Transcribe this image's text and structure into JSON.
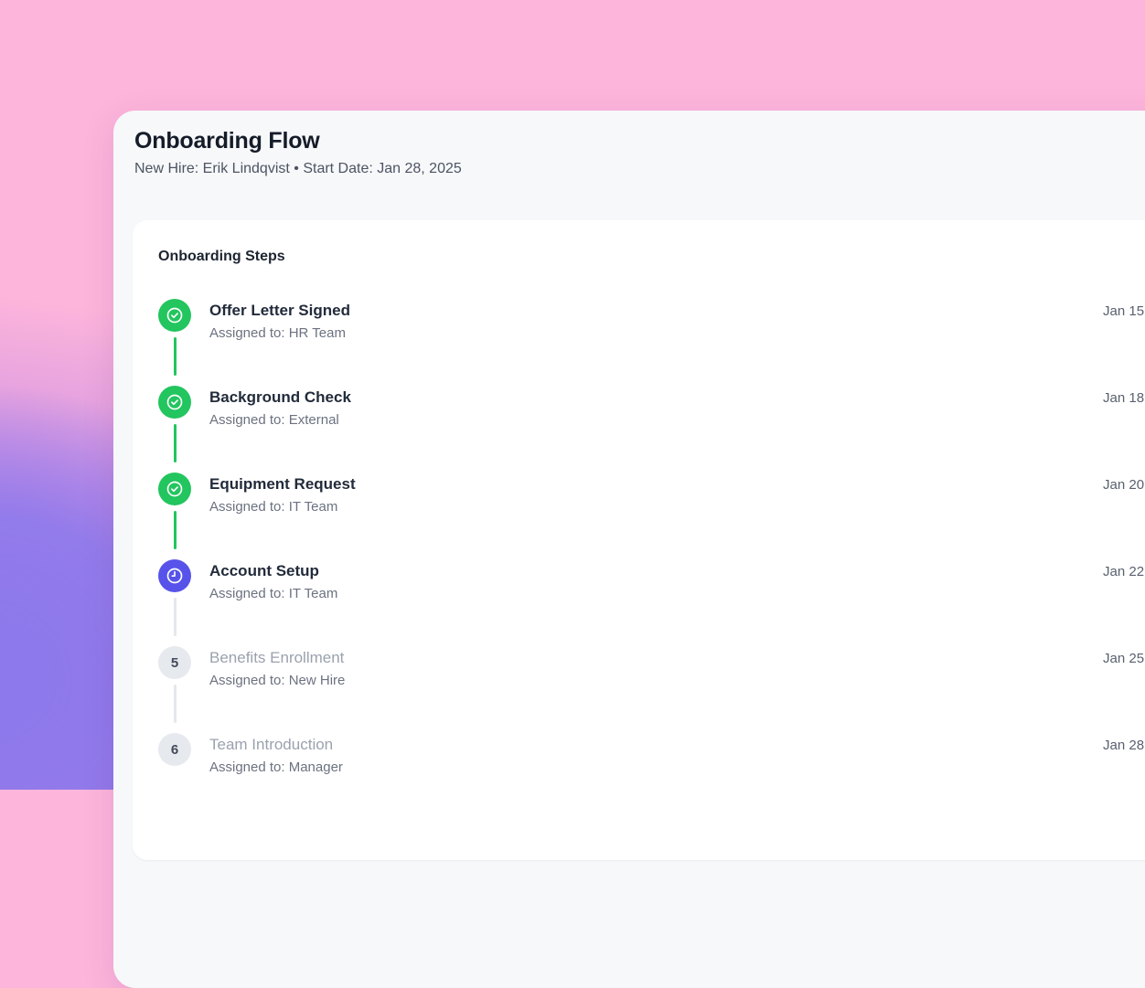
{
  "page": {
    "title": "Onboarding Flow",
    "subtitle": "New Hire: Erik Lindqvist • Start Date: Jan 28, 2025"
  },
  "card": {
    "heading": "Onboarding Steps",
    "steps": [
      {
        "num": "1",
        "title": "Offer Letter Signed",
        "assignee": "Assigned to: HR Team",
        "date": "Jan 15",
        "status": "done",
        "icon": "check-circle-icon"
      },
      {
        "num": "2",
        "title": "Background Check",
        "assignee": "Assigned to: External",
        "date": "Jan 18",
        "status": "done",
        "icon": "check-circle-icon"
      },
      {
        "num": "3",
        "title": "Equipment Request",
        "assignee": "Assigned to: IT Team",
        "date": "Jan 20",
        "status": "done",
        "icon": "check-circle-icon"
      },
      {
        "num": "4",
        "title": "Account Setup",
        "assignee": "Assigned to: IT Team",
        "date": "Jan 22",
        "status": "current",
        "icon": "clock-icon"
      },
      {
        "num": "5",
        "title": "Benefits Enrollment",
        "assignee": "Assigned to: New Hire",
        "date": "Jan 25",
        "status": "pending",
        "icon": "step-number"
      },
      {
        "num": "6",
        "title": "Team Introduction",
        "assignee": "Assigned to: Manager",
        "date": "Jan 28",
        "status": "pending",
        "icon": "step-number"
      }
    ]
  },
  "colors": {
    "done": "#22c55e",
    "current": "#5753ea",
    "pending_circle": "#e6e9ee",
    "connector_pending": "#e5e7eb",
    "icon_stroke": "#ffffff"
  }
}
